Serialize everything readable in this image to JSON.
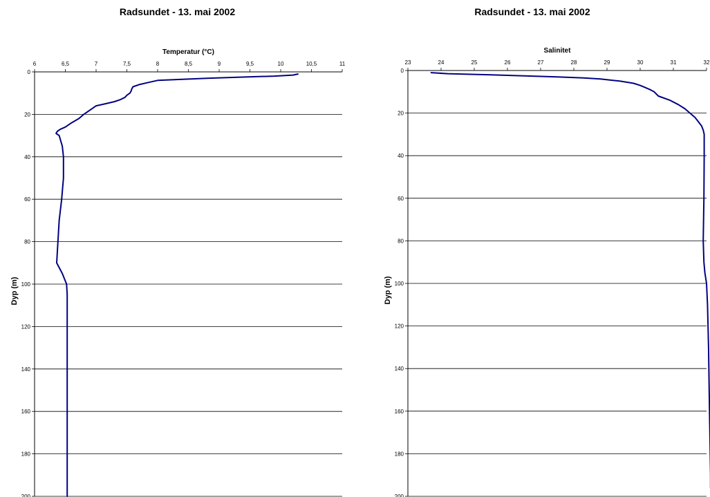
{
  "chart_data": [
    {
      "type": "line",
      "title": "Radsundet - 13. mai 2002",
      "xlabel": "Temperatur (°C)",
      "ylabel": "Dyp (m)",
      "xlim": [
        6,
        11
      ],
      "ylim": [
        0,
        200
      ],
      "x_axis_position": "top",
      "y_inverted": true,
      "grid": "horizontal",
      "legend": "none",
      "line_color": "#000080",
      "x_ticks": [
        "6",
        "6,5",
        "7",
        "7,5",
        "8",
        "8,5",
        "9",
        "9,5",
        "10",
        "10,5",
        "11"
      ],
      "y_ticks": [
        "0",
        "20",
        "40",
        "60",
        "80",
        "100",
        "120",
        "140",
        "160",
        "180",
        "200"
      ],
      "series": [
        {
          "depth": [
            1,
            1.5,
            2,
            2.5,
            3,
            3.5,
            4,
            5,
            6,
            7,
            8,
            9,
            10,
            11,
            12,
            13,
            14,
            15,
            16,
            17,
            18,
            20,
            22,
            24,
            26,
            27,
            28,
            29,
            30,
            35,
            40,
            50,
            60,
            70,
            80,
            85,
            90,
            95,
            100,
            105,
            110,
            130,
            150,
            170,
            190,
            200
          ],
          "values": [
            10.28,
            10.2,
            9.9,
            9.3,
            8.8,
            8.4,
            8.0,
            7.85,
            7.7,
            7.6,
            7.58,
            7.57,
            7.55,
            7.5,
            7.47,
            7.4,
            7.3,
            7.15,
            7.0,
            6.95,
            6.9,
            6.8,
            6.72,
            6.6,
            6.5,
            6.42,
            6.37,
            6.35,
            6.4,
            6.45,
            6.47,
            6.47,
            6.44,
            6.4,
            6.38,
            6.37,
            6.36,
            6.45,
            6.52,
            6.53,
            6.53,
            6.53,
            6.53,
            6.53,
            6.53,
            6.53
          ]
        }
      ]
    },
    {
      "type": "line",
      "title": "Radsundet - 13. mai 2002",
      "xlabel": "Salinitet",
      "ylabel": "Dyp (m)",
      "xlim": [
        23,
        32
      ],
      "ylim": [
        0,
        200
      ],
      "x_axis_position": "top",
      "y_inverted": true,
      "grid": "horizontal",
      "legend": "none",
      "line_color": "#000080",
      "x_ticks": [
        "23",
        "24",
        "25",
        "26",
        "27",
        "28",
        "29",
        "30",
        "31",
        "32"
      ],
      "y_ticks": [
        "0",
        "20",
        "40",
        "60",
        "80",
        "100",
        "120",
        "140",
        "160",
        "180",
        "200"
      ],
      "series": [
        {
          "depth": [
            1,
            1.5,
            2,
            2.5,
            3,
            3.5,
            4,
            5,
            6,
            7,
            8,
            9,
            10,
            12,
            14,
            16,
            18,
            20,
            22,
            24,
            26,
            28,
            30,
            40,
            60,
            80,
            90,
            95,
            100,
            110,
            130,
            150,
            170,
            190,
            196
          ],
          "values": [
            23.7,
            24.2,
            25.5,
            26.5,
            27.5,
            28.3,
            28.8,
            29.4,
            29.8,
            30.0,
            30.15,
            30.3,
            30.42,
            30.55,
            30.9,
            31.15,
            31.35,
            31.5,
            31.65,
            31.75,
            31.85,
            31.9,
            31.93,
            31.93,
            31.92,
            31.9,
            31.92,
            31.95,
            32.0,
            32.03,
            32.06,
            32.08,
            32.1,
            32.12,
            32.12
          ]
        }
      ]
    }
  ]
}
